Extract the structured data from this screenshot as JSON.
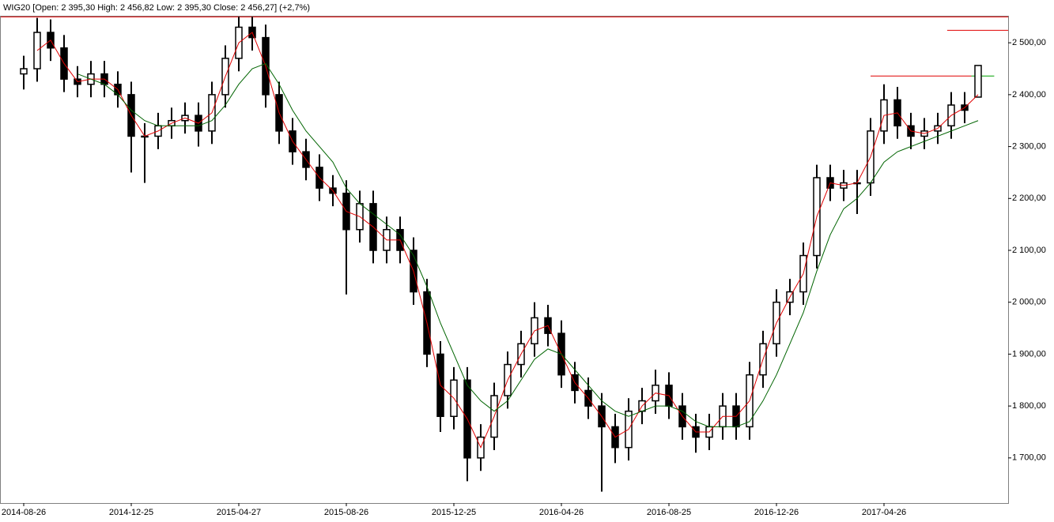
{
  "chart_data": {
    "type": "candlestick",
    "title": "WIG20 [Open: 2 395,30  High: 2 456,82  Low: 2 395,30  Close: 2 456,27] (+2,7%)",
    "categories": [
      "2014-08-26",
      null,
      null,
      null,
      null,
      null,
      null,
      null,
      "2014-12-25",
      null,
      null,
      null,
      null,
      null,
      null,
      null,
      "2015-04-27",
      null,
      null,
      null,
      null,
      null,
      null,
      null,
      "2015-08-26",
      null,
      null,
      null,
      null,
      null,
      null,
      null,
      "2015-12-25",
      null,
      null,
      null,
      null,
      null,
      null,
      null,
      "2016-04-26",
      null,
      null,
      null,
      null,
      null,
      null,
      null,
      "2016-08-25",
      null,
      null,
      null,
      null,
      null,
      null,
      null,
      "2016-12-26",
      null,
      null,
      null,
      null,
      null,
      null,
      null,
      "2017-04-26",
      null,
      null,
      null,
      null,
      null,
      null,
      null
    ],
    "open": [
      2440,
      2450,
      2520,
      2490,
      2430,
      2420,
      2440,
      2420,
      2400,
      2320,
      2320,
      2340,
      2350,
      2360,
      2330,
      2400,
      2470,
      2530,
      2510,
      2400,
      2330,
      2290,
      2260,
      2220,
      2210,
      2140,
      2190,
      2100,
      2140,
      2100,
      2020,
      1900,
      1780,
      1850,
      1700,
      1740,
      1820,
      1880,
      1920,
      1970,
      1940,
      1860,
      1830,
      1800,
      1760,
      1720,
      1790,
      1810,
      1840,
      1800,
      1760,
      1740,
      1760,
      1800,
      1760,
      1860,
      1920,
      2000,
      2020,
      2090,
      2240,
      2220,
      2230,
      2230,
      2330,
      2390,
      2340,
      2320,
      2330,
      2340,
      2380,
      2395.3
    ],
    "high": [
      2475,
      2548,
      2545,
      2515,
      2455,
      2465,
      2465,
      2445,
      2425,
      2345,
      2365,
      2375,
      2385,
      2385,
      2425,
      2495,
      2550,
      2550,
      2535,
      2425,
      2355,
      2315,
      2285,
      2245,
      2235,
      2215,
      2215,
      2165,
      2165,
      2125,
      2045,
      1925,
      1875,
      1875,
      1765,
      1845,
      1905,
      1945,
      2000,
      1995,
      1965,
      1885,
      1855,
      1825,
      1785,
      1815,
      1835,
      1870,
      1865,
      1825,
      1785,
      1785,
      1825,
      1825,
      1885,
      1945,
      2025,
      2045,
      2115,
      2265,
      2265,
      2255,
      2255,
      2355,
      2420,
      2415,
      2365,
      2355,
      2365,
      2405,
      2405,
      2456.82
    ],
    "low": [
      2410,
      2425,
      2465,
      2405,
      2395,
      2395,
      2395,
      2375,
      2250,
      2230,
      2295,
      2315,
      2325,
      2300,
      2305,
      2375,
      2445,
      2485,
      2375,
      2305,
      2265,
      2235,
      2195,
      2185,
      2015,
      2115,
      2075,
      2075,
      2075,
      1995,
      1875,
      1750,
      1755,
      1655,
      1675,
      1715,
      1795,
      1855,
      1895,
      1915,
      1835,
      1805,
      1775,
      1635,
      1690,
      1695,
      1765,
      1785,
      1775,
      1735,
      1710,
      1715,
      1735,
      1735,
      1735,
      1835,
      1895,
      1975,
      1995,
      2065,
      2195,
      2195,
      2170,
      2205,
      2305,
      2315,
      2295,
      2295,
      2305,
      2315,
      2345,
      2395.3
    ],
    "close": [
      2450,
      2520,
      2490,
      2430,
      2420,
      2440,
      2420,
      2400,
      2320,
      2320,
      2340,
      2350,
      2360,
      2330,
      2400,
      2470,
      2530,
      2510,
      2400,
      2330,
      2290,
      2260,
      2220,
      2210,
      2140,
      2190,
      2100,
      2140,
      2100,
      2020,
      1900,
      1780,
      1850,
      1700,
      1740,
      1820,
      1880,
      1920,
      1970,
      1940,
      1860,
      1830,
      1800,
      1760,
      1720,
      1790,
      1810,
      1840,
      1800,
      1760,
      1740,
      1760,
      1800,
      1760,
      1860,
      1920,
      2000,
      2020,
      2090,
      2240,
      2220,
      2230,
      2230,
      2330,
      2390,
      2340,
      2320,
      2330,
      2340,
      2380,
      2370,
      2456.27
    ],
    "color": "#000000",
    "lines": [
      {
        "color": "#e00000",
        "values": [
          null,
          2485,
          2505,
          2460,
          2425,
          2430,
          2430,
          2410,
          2360,
          2320,
          2330,
          2345,
          2355,
          2345,
          2365,
          2435,
          2500,
          2520,
          2455,
          2365,
          2310,
          2275,
          2240,
          2215,
          2175,
          2165,
          2145,
          2120,
          2120,
          2060,
          1960,
          1840,
          1815,
          1775,
          1720,
          1780,
          1850,
          1900,
          1945,
          1955,
          1900,
          1845,
          1815,
          1780,
          1740,
          1755,
          1800,
          1825,
          1820,
          1780,
          1750,
          1750,
          1780,
          1780,
          1810,
          1890,
          1960,
          2010,
          2055,
          2165,
          2230,
          2225,
          2230,
          2280,
          2360,
          2365,
          2330,
          2325,
          2335,
          2360,
          2375,
          2400
        ]
      },
      {
        "color": "#006400",
        "values": [
          null,
          null,
          null,
          null,
          2440,
          2430,
          2420,
          2400,
          2370,
          2350,
          2340,
          2340,
          2340,
          2340,
          2350,
          2380,
          2420,
          2450,
          2460,
          2420,
          2370,
          2330,
          2300,
          2270,
          2220,
          2190,
          2170,
          2150,
          2130,
          2090,
          2030,
          1960,
          1900,
          1840,
          1810,
          1790,
          1810,
          1850,
          1890,
          1910,
          1900,
          1870,
          1840,
          1810,
          1790,
          1780,
          1790,
          1800,
          1800,
          1790,
          1770,
          1760,
          1760,
          1760,
          1770,
          1810,
          1860,
          1920,
          1980,
          2060,
          2130,
          2180,
          2200,
          2230,
          2270,
          2290,
          2300,
          2310,
          2320,
          2330,
          2340,
          2350
        ]
      }
    ],
    "hlines": [
      {
        "value": 2550,
        "color": "#e00000"
      },
      {
        "value": 2524,
        "color": "#e00000",
        "from": 68.7
      },
      {
        "value": 2436,
        "color": "#e00000",
        "from": 63,
        "to": 70.5
      },
      {
        "value": 2436,
        "color": "#00a000",
        "from": 70.5,
        "to": 72.2
      }
    ],
    "ylim": [
      1613,
      2552
    ],
    "yticks": [
      {
        "value": 1700,
        "label": "1 700,00"
      },
      {
        "value": 1800,
        "label": "1 800,00"
      },
      {
        "value": 1900,
        "label": "1 900,00"
      },
      {
        "value": 2000,
        "label": "2 000,00"
      },
      {
        "value": 2100,
        "label": "2 100,00"
      },
      {
        "value": 2200,
        "label": "2 200,00"
      },
      {
        "value": 2300,
        "label": "2 300,00"
      },
      {
        "value": 2400,
        "label": "2 400,00"
      },
      {
        "value": 2500,
        "label": "2 500,00"
      }
    ],
    "grid": false
  }
}
